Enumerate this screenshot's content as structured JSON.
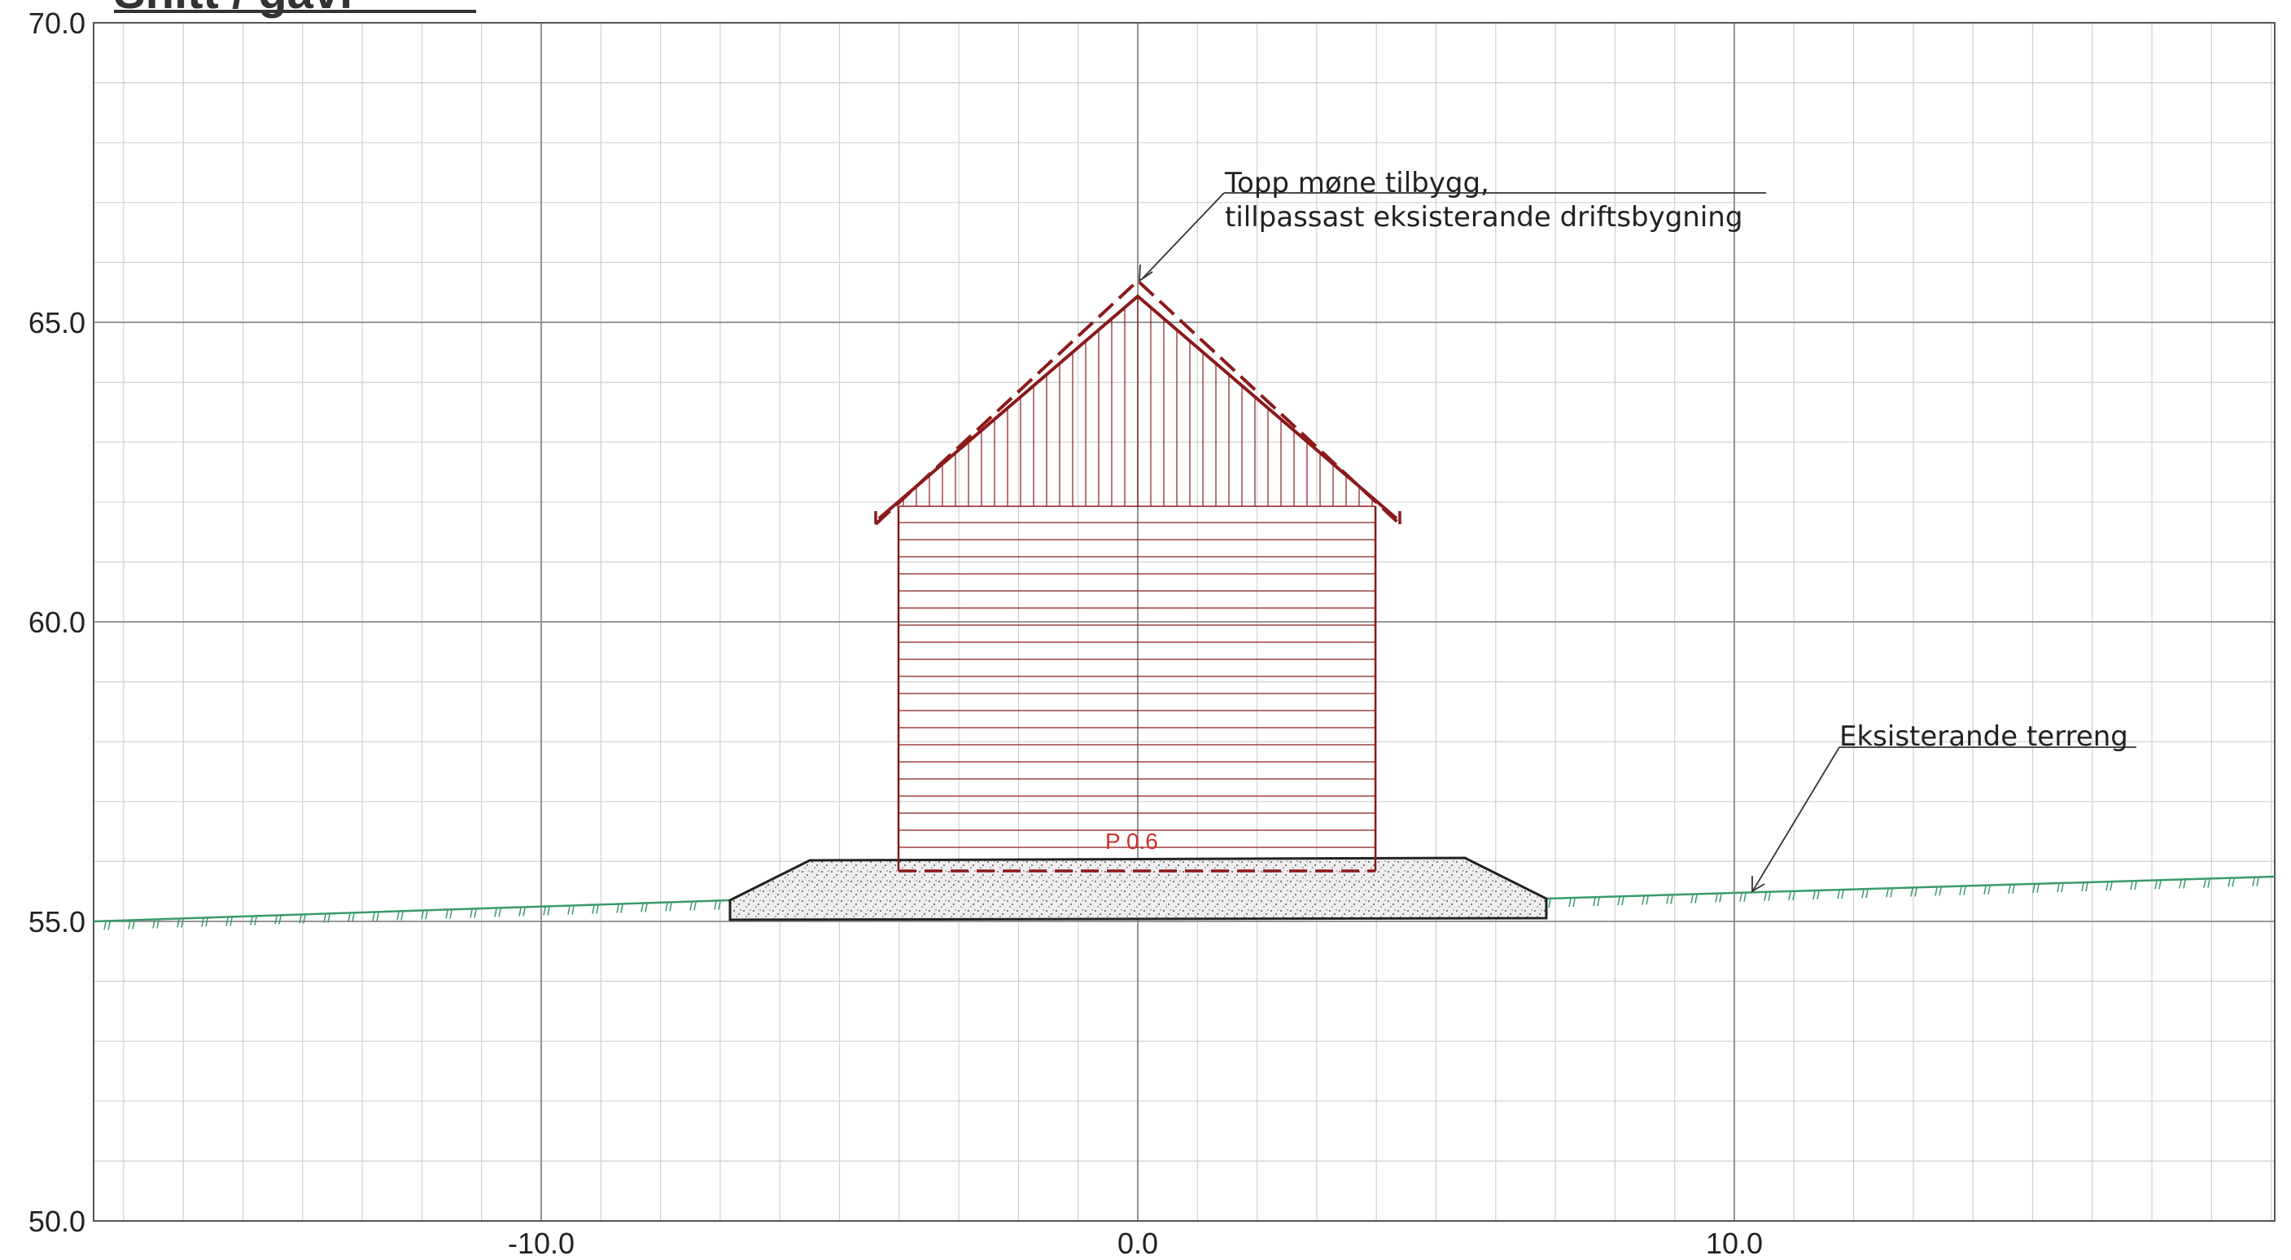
{
  "title": "Snitt / gavl",
  "axes": {
    "x_ticks": [
      {
        "value": -10,
        "label": "-10.0"
      },
      {
        "value": 0,
        "label": "0.0"
      },
      {
        "value": 10,
        "label": "10.0"
      }
    ],
    "y_ticks": [
      {
        "value": 50,
        "label": "50.0"
      },
      {
        "value": 55,
        "label": "55.0"
      },
      {
        "value": 60,
        "label": "60.0"
      },
      {
        "value": 65,
        "label": "65.0"
      },
      {
        "value": 70,
        "label": "70.0"
      }
    ]
  },
  "annotations": {
    "ridge_note_line1": "Topp møne tilbygg,",
    "ridge_note_line2": "tillpassast eksisterande driftsbygning",
    "terrain_note": "Eksisterande terreng",
    "floor_level": "P 0.6"
  },
  "colors": {
    "building": "#8b1a1a",
    "terrain": "#3a9a6a",
    "grid_major": "#8a8a8a",
    "grid_minor": "#cfcfcf",
    "foundation_fill": "#e6e6e6"
  }
}
